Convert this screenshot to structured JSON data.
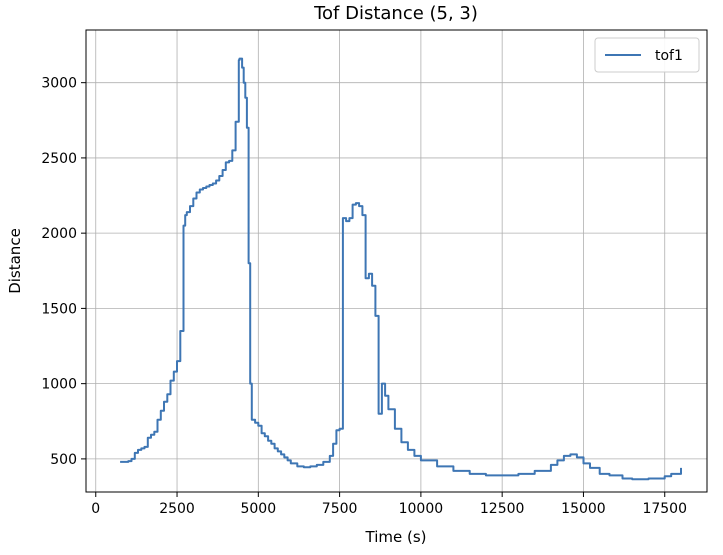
{
  "chart_data": {
    "type": "line",
    "title": "Tof Distance (5, 3)",
    "xlabel": "Time (s)",
    "ylabel": "Distance",
    "xlim": [
      -300,
      18800
    ],
    "ylim": [
      280,
      3350
    ],
    "xticks": [
      0,
      2500,
      5000,
      7500,
      10000,
      12500,
      15000,
      17500
    ],
    "yticks": [
      500,
      1000,
      1500,
      2000,
      2500,
      3000
    ],
    "grid": true,
    "legend_position": "top-right",
    "series": [
      {
        "name": "tof1",
        "color": "#3e76b4",
        "x": [
          750,
          1000,
          1100,
          1200,
          1300,
          1400,
          1500,
          1600,
          1700,
          1800,
          1900,
          2000,
          2100,
          2200,
          2300,
          2400,
          2500,
          2600,
          2700,
          2750,
          2800,
          2900,
          3000,
          3100,
          3200,
          3300,
          3400,
          3500,
          3600,
          3700,
          3800,
          3900,
          4000,
          4100,
          4200,
          4300,
          4400,
          4420,
          4500,
          4550,
          4600,
          4650,
          4700,
          4750,
          4800,
          4900,
          5000,
          5100,
          5200,
          5300,
          5400,
          5500,
          5600,
          5700,
          5800,
          5900,
          6000,
          6200,
          6400,
          6600,
          6800,
          7000,
          7200,
          7300,
          7400,
          7500,
          7600,
          7700,
          7800,
          7900,
          8000,
          8100,
          8200,
          8300,
          8400,
          8500,
          8600,
          8700,
          8800,
          8900,
          9000,
          9200,
          9400,
          9600,
          9800,
          10000,
          10500,
          11000,
          11500,
          12000,
          12500,
          13000,
          13500,
          14000,
          14200,
          14400,
          14600,
          14800,
          15000,
          15200,
          15500,
          15800,
          16200,
          16500,
          17000,
          17500,
          17700,
          18000
        ],
        "y": [
          480,
          485,
          500,
          540,
          560,
          570,
          580,
          640,
          660,
          680,
          760,
          820,
          880,
          930,
          1020,
          1080,
          1150,
          1350,
          2050,
          2120,
          2140,
          2180,
          2230,
          2270,
          2290,
          2300,
          2310,
          2320,
          2330,
          2350,
          2380,
          2420,
          2470,
          2480,
          2550,
          2740,
          3150,
          3160,
          3100,
          3000,
          2900,
          2700,
          1800,
          1000,
          760,
          740,
          720,
          670,
          650,
          620,
          600,
          570,
          550,
          530,
          510,
          490,
          470,
          450,
          445,
          450,
          460,
          480,
          520,
          600,
          690,
          700,
          2100,
          2080,
          2100,
          2190,
          2200,
          2180,
          2120,
          1700,
          1730,
          1650,
          1450,
          800,
          1000,
          920,
          830,
          700,
          610,
          560,
          520,
          490,
          450,
          420,
          400,
          390,
          390,
          400,
          420,
          460,
          490,
          520,
          530,
          510,
          470,
          440,
          400,
          390,
          370,
          365,
          370,
          385,
          400,
          440
        ]
      }
    ]
  }
}
